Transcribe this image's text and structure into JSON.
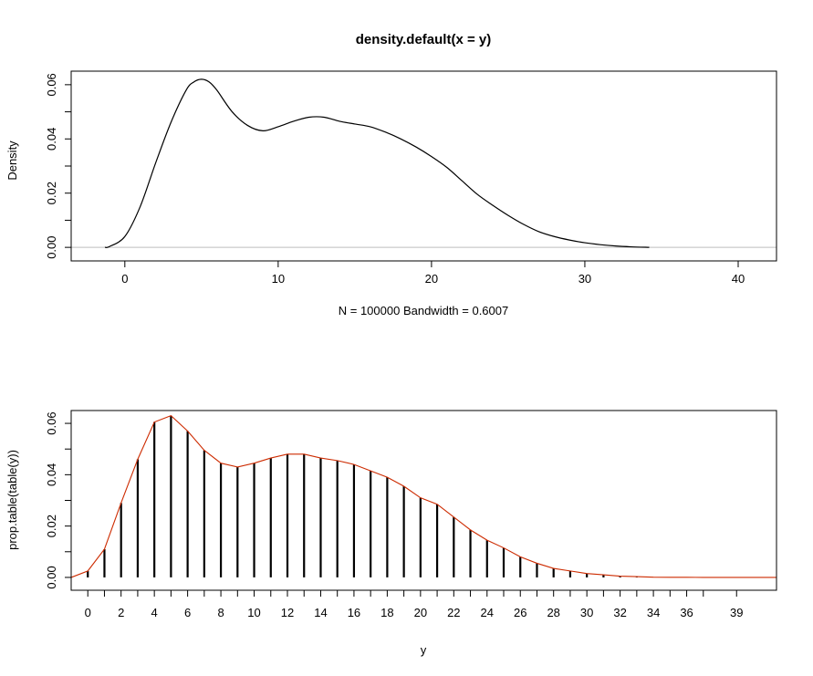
{
  "chart_data": [
    {
      "type": "line",
      "title": "density.default(x = y)",
      "xlabel": "",
      "subtitle": "N = 100000   Bandwidth = 0.6007",
      "ylabel": "Density",
      "xlim": [
        -3.5,
        42.5
      ],
      "ylim": [
        -0.005,
        0.065
      ],
      "x_ticks": [
        0,
        10,
        20,
        30,
        40
      ],
      "y_ticks": [
        0.0,
        0.02,
        0.04,
        0.06
      ],
      "x_tick_labels": [
        "0",
        "10",
        "20",
        "30",
        "40"
      ],
      "y_tick_labels": [
        "0.00",
        "0.02",
        "0.04",
        "0.06"
      ],
      "reference_line_y": 0,
      "colors": {
        "line": "#000000",
        "reference": "#bebebe"
      },
      "series": [
        {
          "x": [
            -1.3,
            -1,
            0,
            1,
            2,
            3,
            4,
            4.5,
            5,
            5.5,
            6,
            7,
            8,
            9,
            10,
            11,
            12,
            13,
            14,
            15,
            16,
            17,
            18,
            19,
            20,
            21,
            22,
            23,
            24,
            25,
            26,
            27,
            28,
            29,
            30,
            31,
            32,
            33,
            34.2
          ],
          "y": [
            0.0,
            0.0003,
            0.004,
            0.015,
            0.031,
            0.046,
            0.058,
            0.061,
            0.062,
            0.061,
            0.058,
            0.05,
            0.045,
            0.043,
            0.0445,
            0.0465,
            0.048,
            0.048,
            0.0465,
            0.0455,
            0.0445,
            0.0425,
            0.04,
            0.037,
            0.0335,
            0.0295,
            0.0245,
            0.0195,
            0.0155,
            0.0118,
            0.0085,
            0.0058,
            0.004,
            0.0027,
            0.0017,
            0.001,
            0.0005,
            0.0002,
            0.0
          ]
        }
      ]
    },
    {
      "type": "bar",
      "title": "",
      "xlabel": "y",
      "ylabel": "prop.table(table(y))",
      "xlim": [
        -1.0,
        41.4
      ],
      "ylim": [
        -0.005,
        0.065
      ],
      "x_tick_labels": [
        "0",
        "2",
        "4",
        "6",
        "8",
        "10",
        "12",
        "14",
        "16",
        "18",
        "20",
        "22",
        "24",
        "26",
        "28",
        "30",
        "32",
        "34",
        "36",
        "39"
      ],
      "y_tick_labels": [
        "0.00",
        "0.02",
        "0.04",
        "0.06"
      ],
      "y_ticks": [
        0.0,
        0.02,
        0.04,
        0.06
      ],
      "colors": {
        "bars": "#000000",
        "line": "#cd2b00"
      },
      "categories": [
        0,
        1,
        2,
        3,
        4,
        5,
        6,
        7,
        8,
        9,
        10,
        11,
        12,
        13,
        14,
        15,
        16,
        17,
        18,
        19,
        20,
        21,
        22,
        23,
        24,
        25,
        26,
        27,
        28,
        29,
        30,
        31,
        32,
        33,
        34,
        35,
        36,
        37,
        39
      ],
      "values": [
        0.0025,
        0.011,
        0.029,
        0.046,
        0.0605,
        0.063,
        0.057,
        0.0495,
        0.0445,
        0.043,
        0.0445,
        0.0465,
        0.048,
        0.048,
        0.0465,
        0.0455,
        0.044,
        0.0415,
        0.039,
        0.0355,
        0.031,
        0.0285,
        0.0235,
        0.0185,
        0.0145,
        0.0115,
        0.008,
        0.0055,
        0.0035,
        0.0025,
        0.0015,
        0.001,
        0.0005,
        0.0003,
        0.0001,
        5e-05,
        3e-05,
        1e-05,
        1e-05
      ],
      "line": {
        "x": [
          -1.0,
          0,
          1,
          2,
          3,
          4,
          5,
          6,
          7,
          8,
          9,
          10,
          11,
          12,
          13,
          14,
          15,
          16,
          17,
          18,
          19,
          20,
          21,
          22,
          23,
          24,
          25,
          26,
          27,
          28,
          29,
          30,
          31,
          32,
          33,
          34,
          35,
          36,
          37,
          39,
          41.4
        ],
        "y": [
          0.0,
          0.0025,
          0.011,
          0.029,
          0.046,
          0.0605,
          0.063,
          0.057,
          0.0495,
          0.0445,
          0.043,
          0.0445,
          0.0465,
          0.048,
          0.048,
          0.0465,
          0.0455,
          0.044,
          0.0415,
          0.039,
          0.0355,
          0.031,
          0.0285,
          0.0235,
          0.0185,
          0.0145,
          0.0115,
          0.008,
          0.0055,
          0.0035,
          0.0025,
          0.0015,
          0.001,
          0.0005,
          0.0003,
          0.0001,
          5e-05,
          3e-05,
          1e-05,
          1e-05,
          0.0
        ]
      }
    }
  ]
}
